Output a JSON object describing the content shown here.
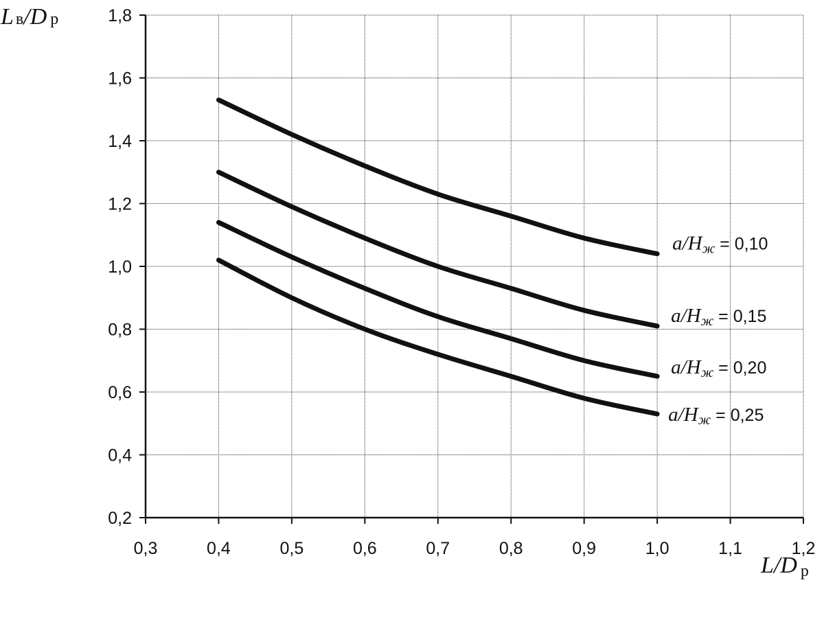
{
  "chart_data": {
    "type": "line",
    "xlabel": {
      "main": "L/D",
      "sub": "р"
    },
    "ylabel": {
      "main": "L",
      "sub1": "в",
      "mid": "/D",
      "sub2": "р"
    },
    "xlim": [
      0.3,
      1.2
    ],
    "ylim": [
      0.2,
      1.8
    ],
    "x_ticks": [
      "0,3",
      "0,4",
      "0,5",
      "0,6",
      "0,7",
      "0,8",
      "0,9",
      "1,0",
      "1,1",
      "1,2"
    ],
    "y_ticks": [
      "0,2",
      "0,4",
      "0,6",
      "0,8",
      "1,0",
      "1,2",
      "1,4",
      "1,6",
      "1,8"
    ],
    "grid": true,
    "series": [
      {
        "label_var": "a/H",
        "label_sub": "ж",
        "label_eq": " = 0,10",
        "x": [
          0.4,
          0.5,
          0.6,
          0.7,
          0.8,
          0.9,
          1.0
        ],
        "values": [
          1.53,
          1.42,
          1.32,
          1.23,
          1.16,
          1.09,
          1.04
        ]
      },
      {
        "label_var": "a/H",
        "label_sub": "ж",
        "label_eq": " = 0,15",
        "x": [
          0.4,
          0.5,
          0.6,
          0.7,
          0.8,
          0.9,
          1.0
        ],
        "values": [
          1.3,
          1.19,
          1.09,
          1.0,
          0.93,
          0.86,
          0.81
        ]
      },
      {
        "label_var": "a/H",
        "label_sub": "ж",
        "label_eq": " = 0,20",
        "x": [
          0.4,
          0.5,
          0.6,
          0.7,
          0.8,
          0.9,
          1.0
        ],
        "values": [
          1.14,
          1.03,
          0.93,
          0.84,
          0.77,
          0.7,
          0.65
        ]
      },
      {
        "label_var": "a/H",
        "label_sub": "ж",
        "label_eq": " = 0,25",
        "x": [
          0.4,
          0.5,
          0.6,
          0.7,
          0.8,
          0.9,
          1.0
        ],
        "values": [
          1.02,
          0.9,
          0.8,
          0.72,
          0.65,
          0.58,
          0.53
        ]
      }
    ],
    "colors": {
      "line": "#111111",
      "grid": "#333333",
      "background": "#ffffff"
    }
  }
}
